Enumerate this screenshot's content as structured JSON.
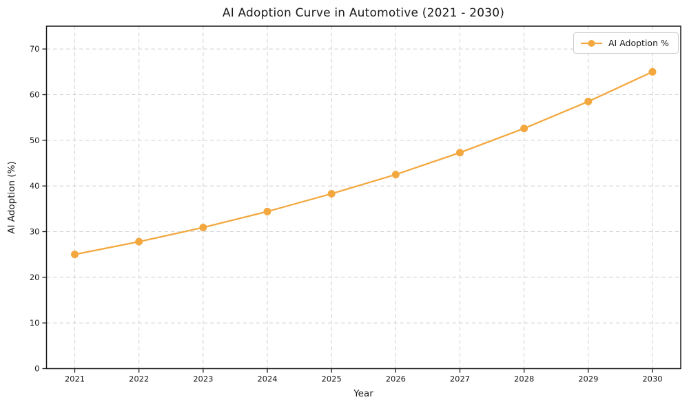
{
  "chart_data": {
    "type": "line",
    "title": "AI Adoption Curve in Automotive (2021 - 2030)",
    "xlabel": "Year",
    "ylabel": "AI Adoption (%)",
    "categories": [
      "2021",
      "2022",
      "2023",
      "2024",
      "2025",
      "2026",
      "2027",
      "2028",
      "2029",
      "2030"
    ],
    "series": [
      {
        "name": "AI Adoption %",
        "color": "#F3A83F",
        "marker": "circle",
        "line_style": "solid",
        "values": [
          25.0,
          27.8,
          30.9,
          34.4,
          38.3,
          42.5,
          47.3,
          52.6,
          58.5,
          65.0
        ]
      }
    ],
    "ylim": [
      0,
      75
    ],
    "yticks": [
      0,
      10,
      20,
      30,
      40,
      50,
      60,
      70
    ],
    "grid": true,
    "grid_style": "dashed",
    "grid_color": "#d3d3d3",
    "axis_color": "#1a1a1a",
    "background": "#ffffff",
    "legend": {
      "position": "upper right",
      "entries": [
        "AI Adoption %"
      ]
    }
  }
}
